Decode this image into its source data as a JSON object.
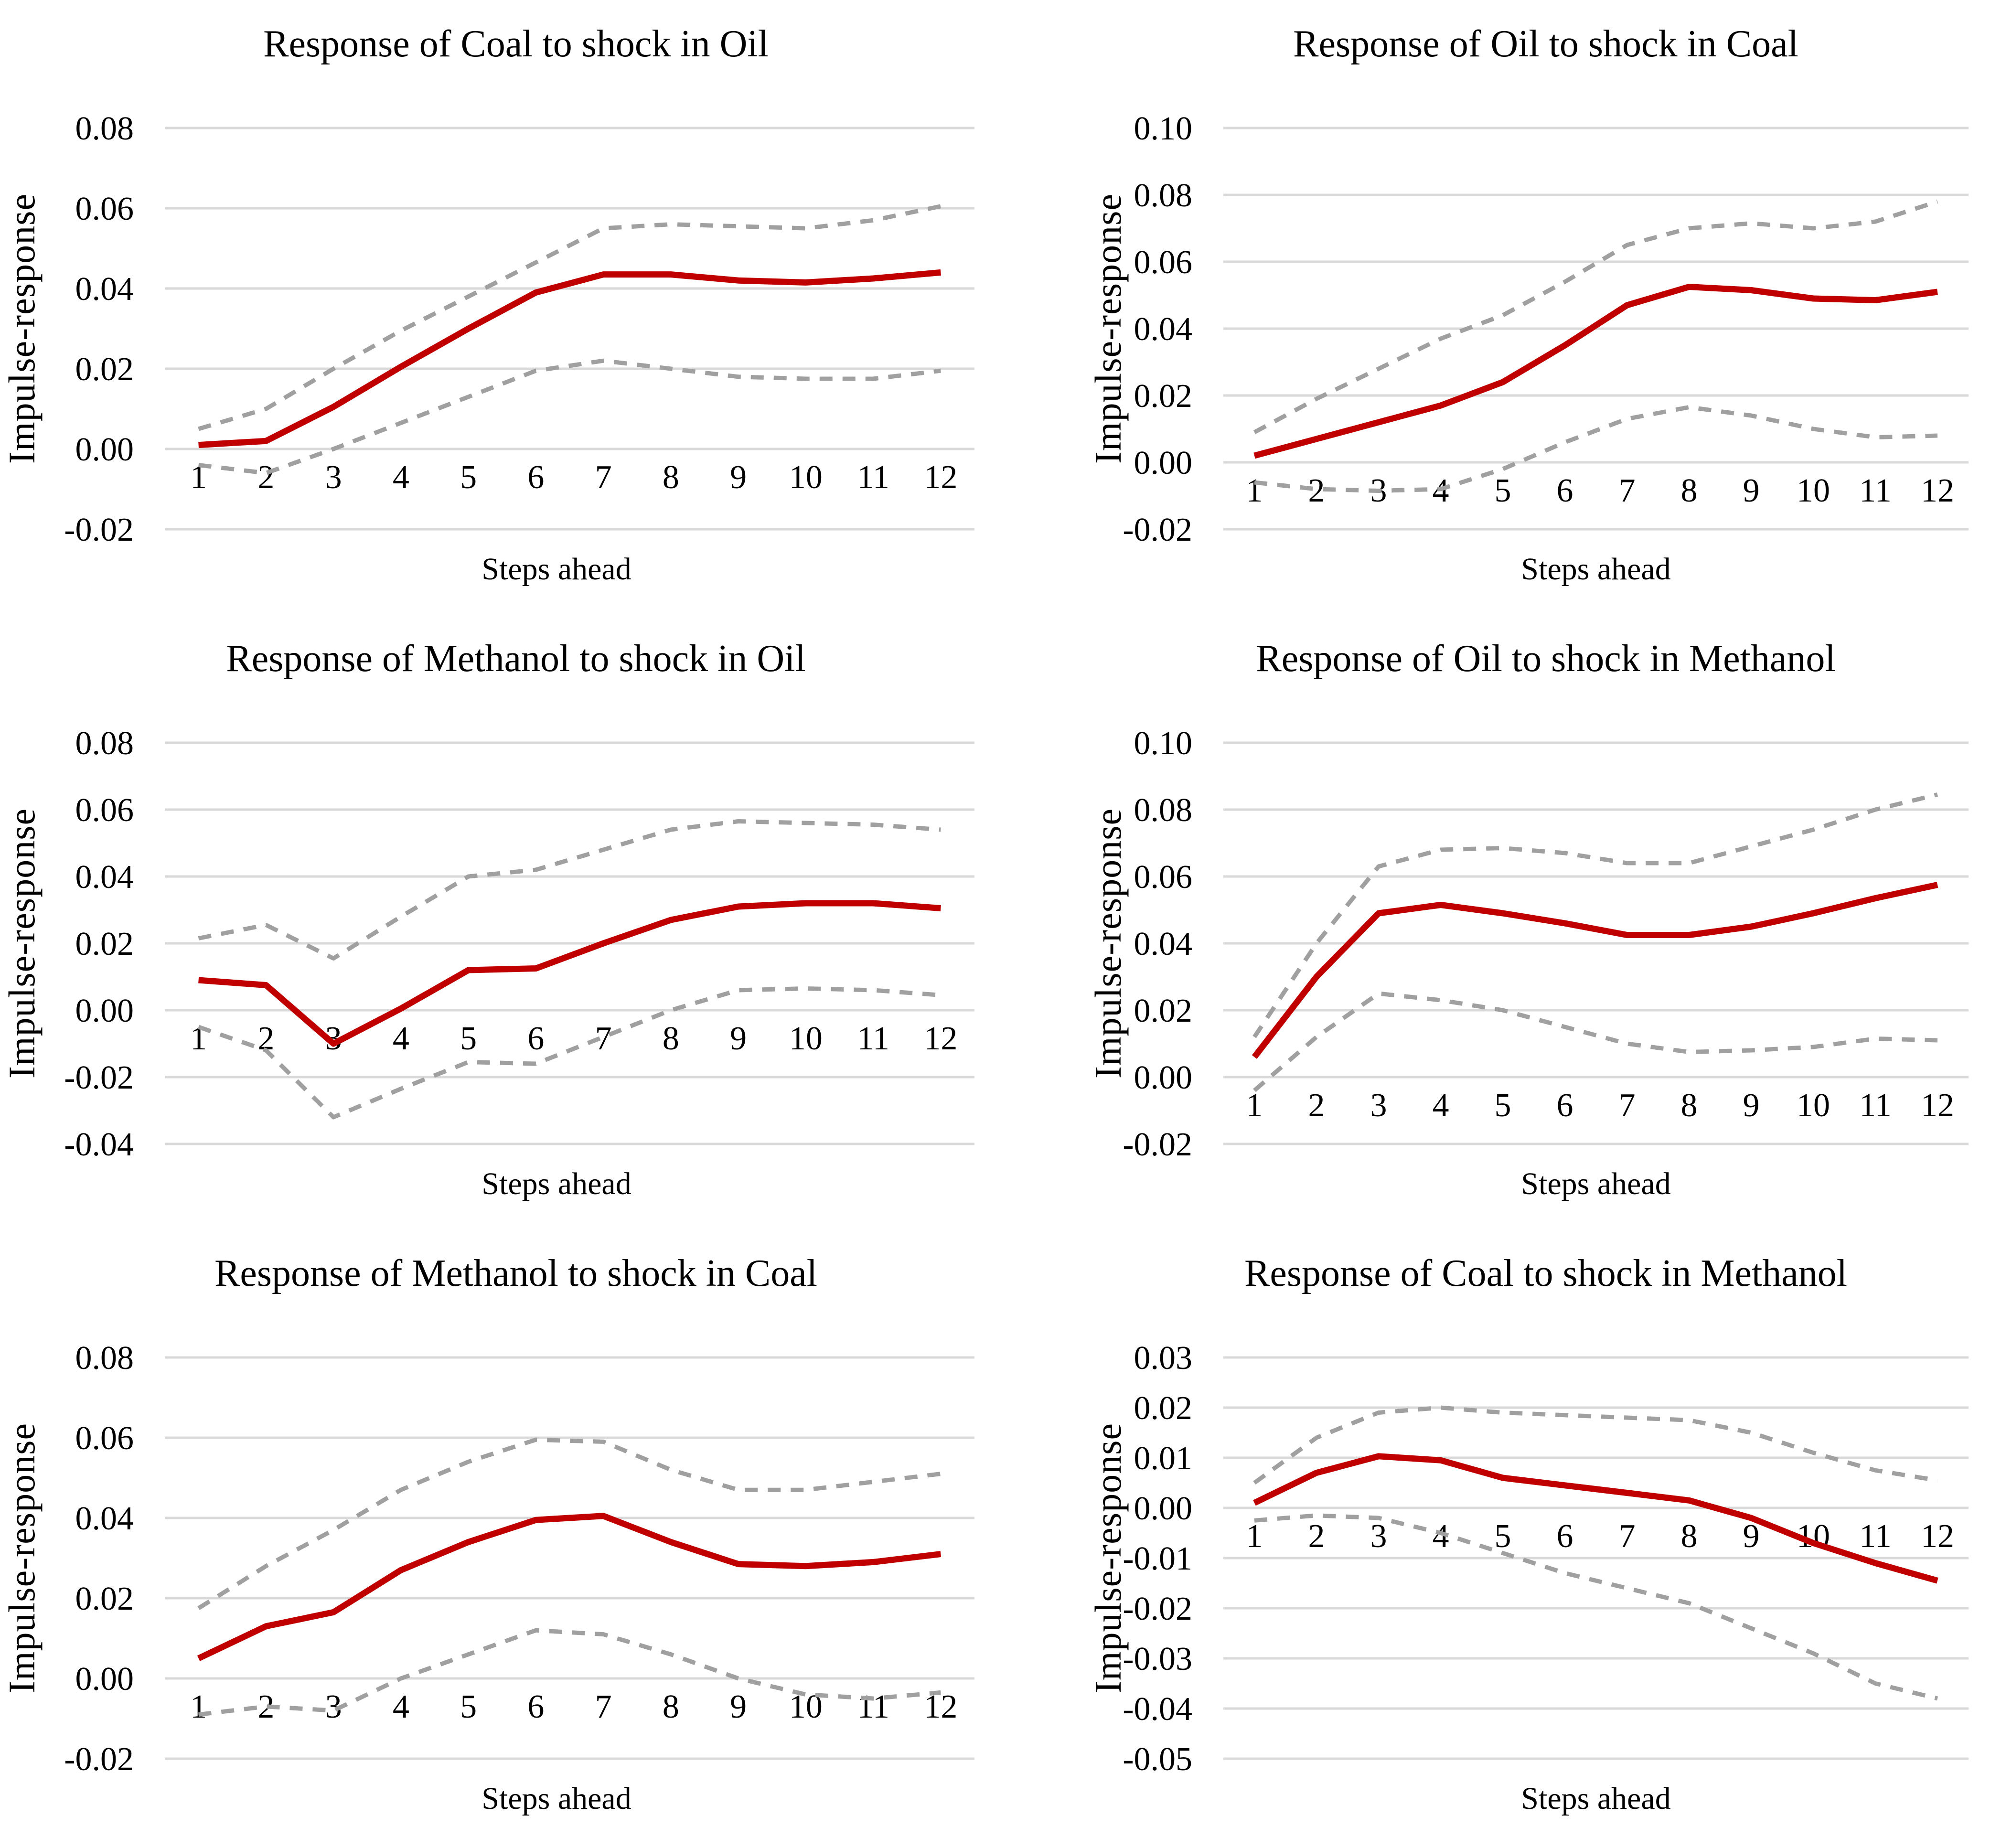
{
  "colors": {
    "background": "#ffffff",
    "estimate_line": "#c00000",
    "confidence_band": "#a0a0a0",
    "gridline": "#d9d9d9",
    "text": "#000000"
  },
  "chart_data": [
    {
      "type": "line",
      "title": "Response of Coal to shock in Oil",
      "xlabel": "Steps ahead",
      "ylabel": "Impulse-response",
      "categories": [
        1,
        2,
        3,
        4,
        5,
        6,
        7,
        8,
        9,
        10,
        11,
        12
      ],
      "y_ticks": [
        0.08,
        0.06,
        0.04,
        0.02,
        0.0,
        -0.02
      ],
      "ylim": [
        -0.02,
        0.08
      ],
      "grid": true,
      "legend": "none",
      "series": [
        {
          "name": "upper-confidence-band",
          "style": "dashed",
          "color": "#a0a0a0",
          "values": [
            0.005,
            0.01,
            0.02,
            0.0295,
            0.038,
            0.0465,
            0.055,
            0.056,
            0.0555,
            0.055,
            0.057,
            0.0605
          ]
        },
        {
          "name": "lower-confidence-band",
          "style": "dashed",
          "color": "#a0a0a0",
          "values": [
            -0.004,
            -0.006,
            0.0,
            0.0065,
            0.013,
            0.0195,
            0.022,
            0.02,
            0.018,
            0.0175,
            0.0175,
            0.0195
          ]
        },
        {
          "name": "impulse-response-estimate",
          "style": "solid",
          "color": "#c00000",
          "values": [
            0.001,
            0.002,
            0.0105,
            0.0205,
            0.03,
            0.039,
            0.0435,
            0.0435,
            0.042,
            0.0415,
            0.0425,
            0.044
          ]
        }
      ]
    },
    {
      "type": "line",
      "title": "Response of Oil to shock in Coal",
      "xlabel": "Steps ahead",
      "ylabel": "Impulse-response",
      "categories": [
        1,
        2,
        3,
        4,
        5,
        6,
        7,
        8,
        9,
        10,
        11,
        12
      ],
      "y_ticks": [
        0.1,
        0.08,
        0.06,
        0.04,
        0.02,
        0.0,
        -0.02
      ],
      "ylim": [
        -0.02,
        0.1
      ],
      "grid": true,
      "legend": "none",
      "series": [
        {
          "name": "upper-confidence-band",
          "style": "dashed",
          "color": "#a0a0a0",
          "values": [
            0.009,
            0.019,
            0.028,
            0.037,
            0.044,
            0.054,
            0.065,
            0.07,
            0.0715,
            0.07,
            0.072,
            0.078
          ]
        },
        {
          "name": "lower-confidence-band",
          "style": "dashed",
          "color": "#a0a0a0",
          "values": [
            -0.006,
            -0.008,
            -0.0085,
            -0.008,
            -0.002,
            0.006,
            0.013,
            0.0165,
            0.014,
            0.01,
            0.0075,
            0.008
          ]
        },
        {
          "name": "impulse-response-estimate",
          "style": "solid",
          "color": "#c00000",
          "values": [
            0.002,
            0.007,
            0.012,
            0.017,
            0.024,
            0.035,
            0.047,
            0.0525,
            0.0515,
            0.049,
            0.0485,
            0.051
          ]
        }
      ]
    },
    {
      "type": "line",
      "title": "Response of Methanol to shock in Oil",
      "xlabel": "Steps ahead",
      "ylabel": "Impulse-response",
      "categories": [
        1,
        2,
        3,
        4,
        5,
        6,
        7,
        8,
        9,
        10,
        11,
        12
      ],
      "y_ticks": [
        0.08,
        0.06,
        0.04,
        0.02,
        0.0,
        -0.02,
        -0.04
      ],
      "ylim": [
        -0.04,
        0.08
      ],
      "grid": true,
      "legend": "none",
      "series": [
        {
          "name": "upper-confidence-band",
          "style": "dashed",
          "color": "#a0a0a0",
          "values": [
            0.0215,
            0.0255,
            0.0155,
            0.028,
            0.04,
            0.042,
            0.048,
            0.054,
            0.0565,
            0.056,
            0.0555,
            0.054
          ]
        },
        {
          "name": "lower-confidence-band",
          "style": "dashed",
          "color": "#a0a0a0",
          "values": [
            -0.005,
            -0.012,
            -0.032,
            -0.0235,
            -0.0155,
            -0.016,
            -0.008,
            0.0,
            0.006,
            0.0065,
            0.006,
            0.0045
          ]
        },
        {
          "name": "impulse-response-estimate",
          "style": "solid",
          "color": "#c00000",
          "values": [
            0.009,
            0.0075,
            -0.01,
            0.0005,
            0.012,
            0.0125,
            0.02,
            0.027,
            0.031,
            0.032,
            0.032,
            0.0305
          ]
        }
      ]
    },
    {
      "type": "line",
      "title": "Response of Oil to shock in Methanol",
      "xlabel": "Steps ahead",
      "ylabel": "Impulse-response",
      "categories": [
        1,
        2,
        3,
        4,
        5,
        6,
        7,
        8,
        9,
        10,
        11,
        12
      ],
      "y_ticks": [
        0.1,
        0.08,
        0.06,
        0.04,
        0.02,
        0.0,
        -0.02
      ],
      "ylim": [
        -0.02,
        0.1
      ],
      "grid": true,
      "legend": "none",
      "series": [
        {
          "name": "upper-confidence-band",
          "style": "dashed",
          "color": "#a0a0a0",
          "values": [
            0.012,
            0.04,
            0.063,
            0.068,
            0.0685,
            0.067,
            0.064,
            0.064,
            0.069,
            0.074,
            0.08,
            0.0845
          ]
        },
        {
          "name": "lower-confidence-band",
          "style": "dashed",
          "color": "#a0a0a0",
          "values": [
            -0.004,
            0.012,
            0.025,
            0.023,
            0.02,
            0.015,
            0.01,
            0.0075,
            0.008,
            0.009,
            0.0115,
            0.011
          ]
        },
        {
          "name": "impulse-response-estimate",
          "style": "solid",
          "color": "#c00000",
          "values": [
            0.006,
            0.03,
            0.049,
            0.0515,
            0.049,
            0.046,
            0.0425,
            0.0425,
            0.045,
            0.049,
            0.0535,
            0.0575
          ]
        }
      ]
    },
    {
      "type": "line",
      "title": "Response of Methanol to shock in Coal",
      "xlabel": "Steps ahead",
      "ylabel": "Impulse-response",
      "categories": [
        1,
        2,
        3,
        4,
        5,
        6,
        7,
        8,
        9,
        10,
        11,
        12
      ],
      "y_ticks": [
        0.08,
        0.06,
        0.04,
        0.02,
        0.0,
        -0.02
      ],
      "ylim": [
        -0.02,
        0.08
      ],
      "grid": true,
      "legend": "none",
      "series": [
        {
          "name": "upper-confidence-band",
          "style": "dashed",
          "color": "#a0a0a0",
          "values": [
            0.0175,
            0.028,
            0.037,
            0.047,
            0.054,
            0.0595,
            0.059,
            0.052,
            0.047,
            0.047,
            0.049,
            0.051
          ]
        },
        {
          "name": "lower-confidence-band",
          "style": "dashed",
          "color": "#a0a0a0",
          "values": [
            -0.009,
            -0.007,
            -0.008,
            0.0,
            0.006,
            0.012,
            0.011,
            0.006,
            0.0,
            -0.004,
            -0.005,
            -0.0035
          ]
        },
        {
          "name": "impulse-response-estimate",
          "style": "solid",
          "color": "#c00000",
          "values": [
            0.005,
            0.013,
            0.0165,
            0.027,
            0.034,
            0.0395,
            0.0405,
            0.034,
            0.0285,
            0.028,
            0.029,
            0.031
          ]
        }
      ]
    },
    {
      "type": "line",
      "title": "Response of Coal to shock in Methanol",
      "xlabel": "Steps ahead",
      "ylabel": "Impulse-response",
      "categories": [
        1,
        2,
        3,
        4,
        5,
        6,
        7,
        8,
        9,
        10,
        11,
        12
      ],
      "y_ticks": [
        0.03,
        0.02,
        0.01,
        0.0,
        -0.01,
        -0.02,
        -0.03,
        -0.04,
        -0.05
      ],
      "ylim": [
        -0.05,
        0.03
      ],
      "grid": true,
      "legend": "none",
      "series": [
        {
          "name": "upper-confidence-band",
          "style": "dashed",
          "color": "#a0a0a0",
          "values": [
            0.005,
            0.014,
            0.019,
            0.02,
            0.019,
            0.0185,
            0.018,
            0.0175,
            0.015,
            0.011,
            0.0075,
            0.0055
          ]
        },
        {
          "name": "lower-confidence-band",
          "style": "dashed",
          "color": "#a0a0a0",
          "values": [
            -0.0025,
            -0.0015,
            -0.002,
            -0.005,
            -0.009,
            -0.013,
            -0.016,
            -0.019,
            -0.024,
            -0.029,
            -0.035,
            -0.038
          ]
        },
        {
          "name": "impulse-response-estimate",
          "style": "solid",
          "color": "#c00000",
          "values": [
            0.001,
            0.007,
            0.0103,
            0.0095,
            0.006,
            0.0045,
            0.003,
            0.0015,
            -0.002,
            -0.007,
            -0.011,
            -0.0145
          ]
        }
      ]
    }
  ]
}
